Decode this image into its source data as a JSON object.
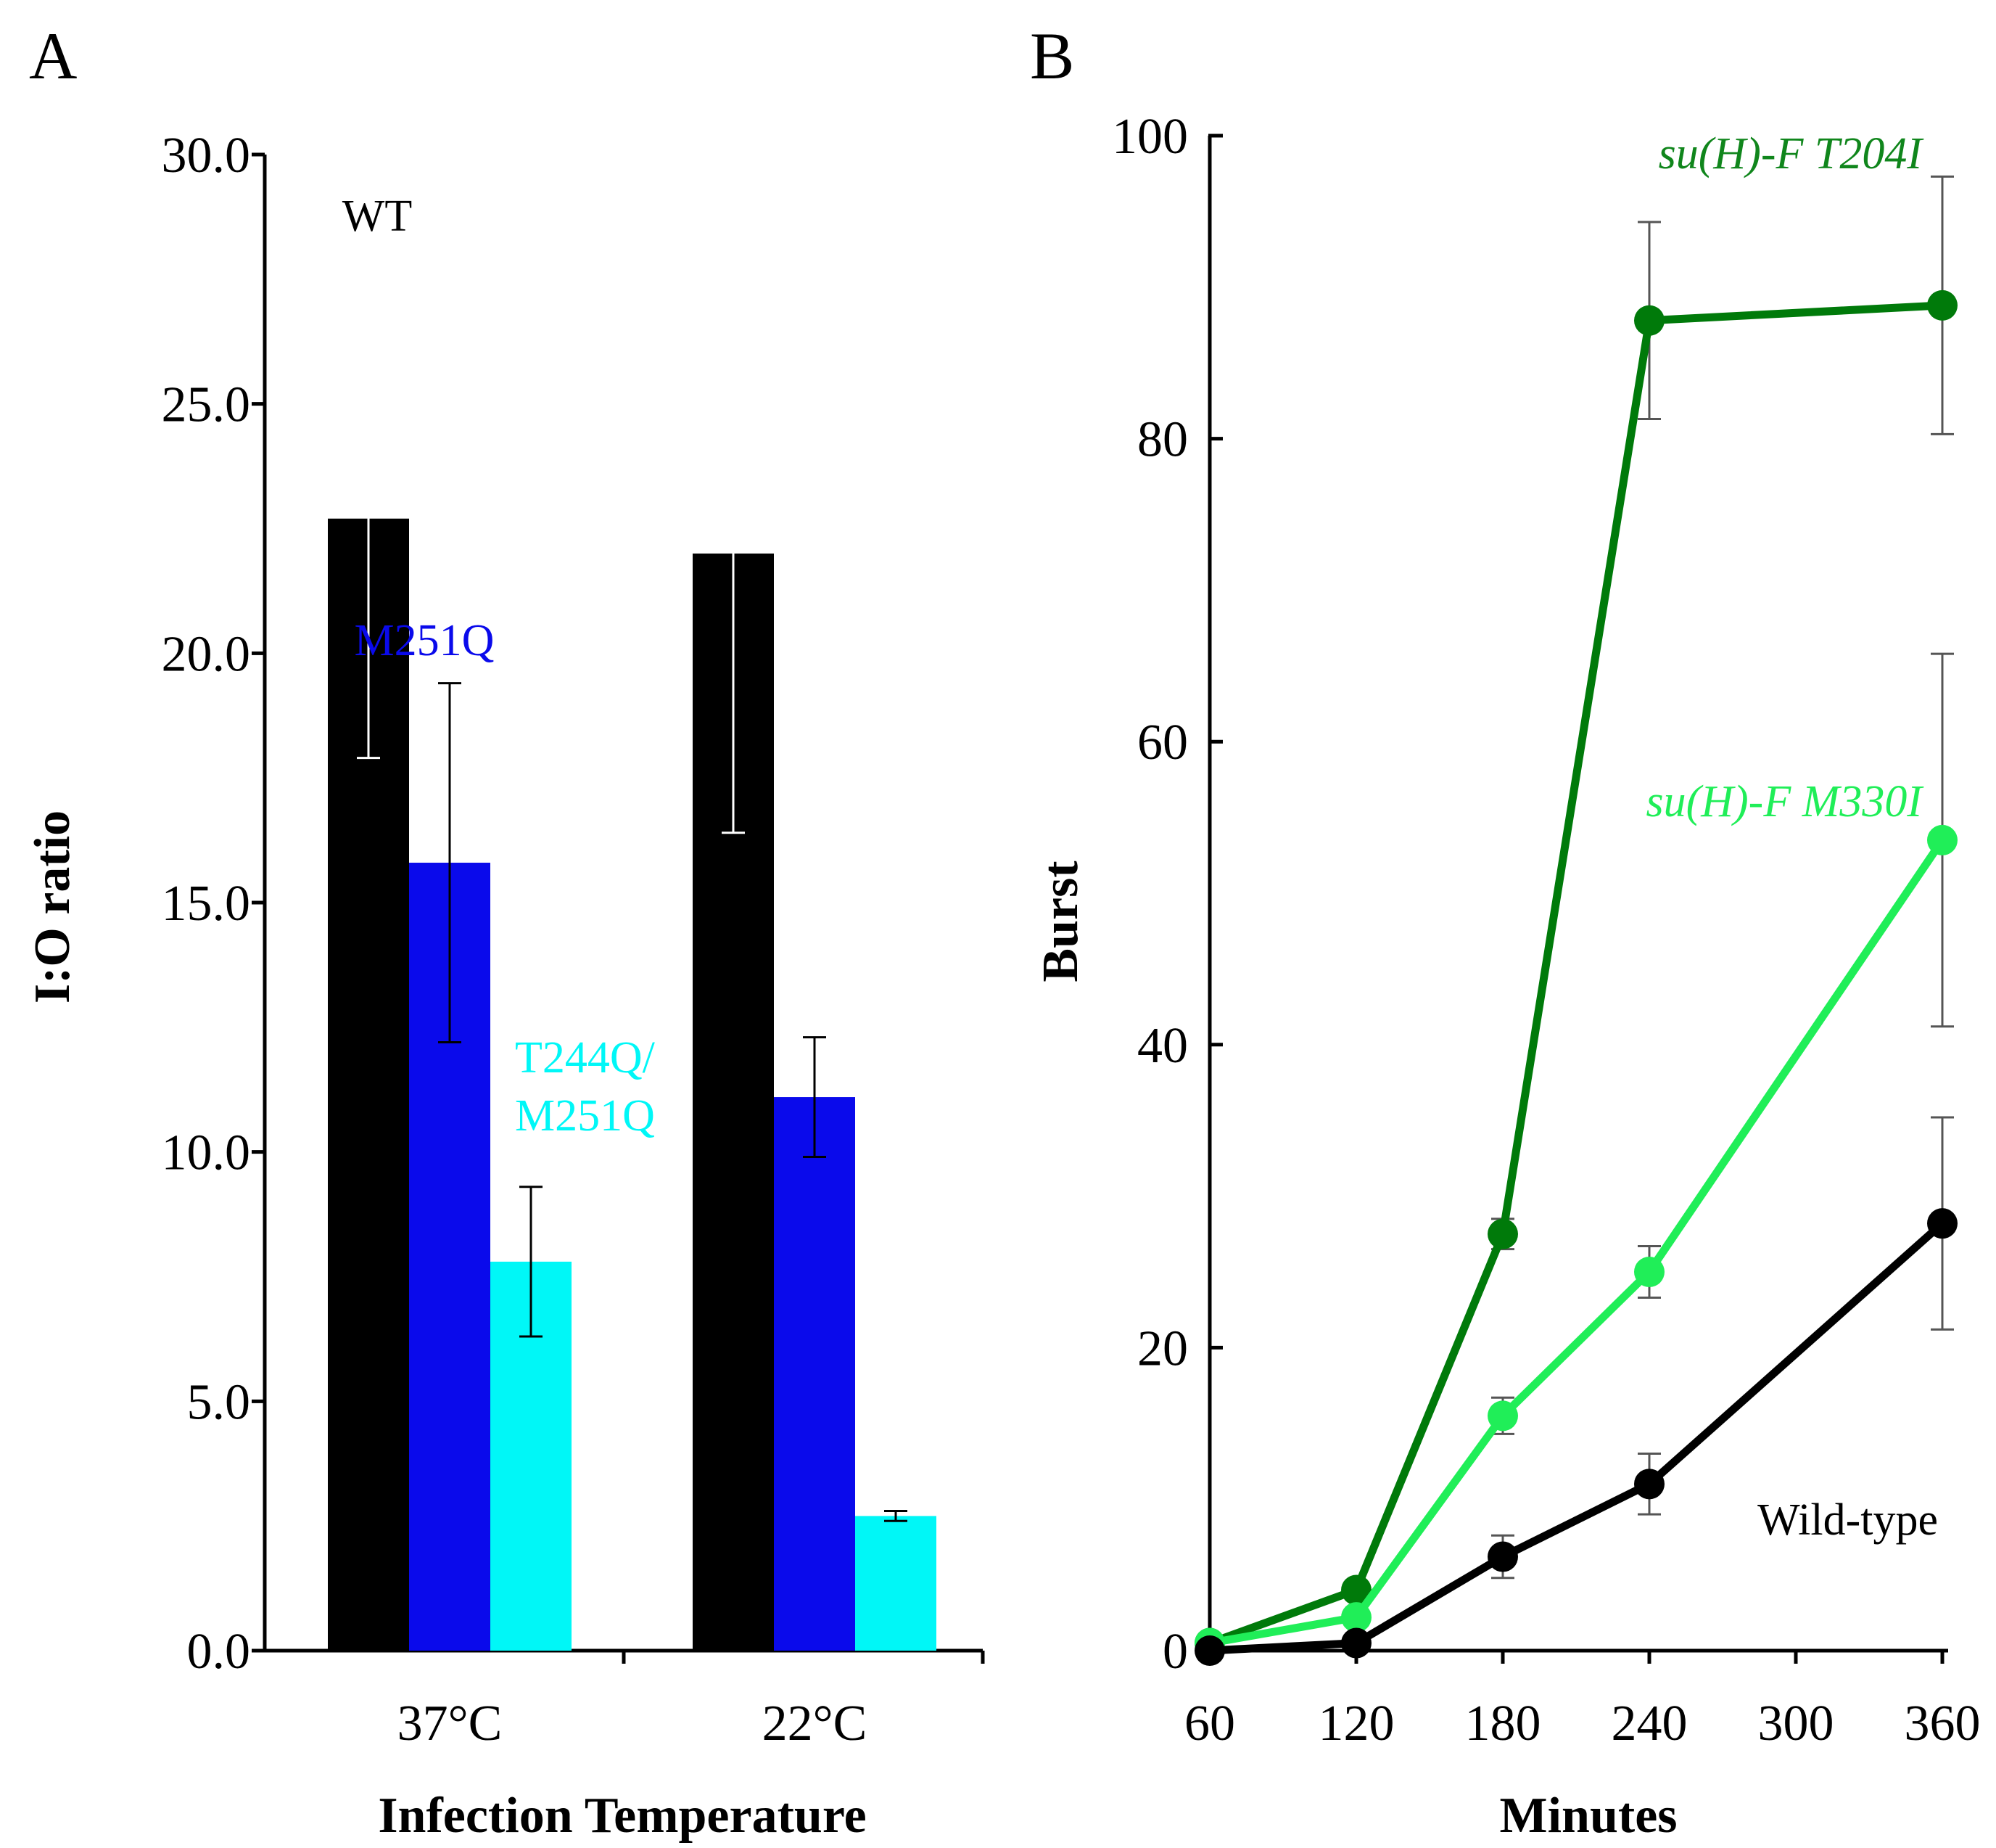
{
  "panel_labels": [
    "A",
    "B"
  ],
  "chart_data": [
    {
      "panel": "A",
      "type": "bar",
      "xlabel": "Infection Temperature",
      "ylabel": "I:O ratio",
      "ylim": [
        0,
        30
      ],
      "yticks": [
        "0.0",
        "5.0",
        "10.0",
        "15.0",
        "20.0",
        "25.0",
        "30.0"
      ],
      "categories": [
        "37°C",
        "22°C"
      ],
      "series": [
        {
          "name": "WT",
          "label_lines": [
            "WT"
          ],
          "color": "#000000",
          "errorbar_color": "#ffffff",
          "values": [
            22.7,
            22.0
          ],
          "errors": [
            4.8,
            5.6
          ]
        },
        {
          "name": "M251Q",
          "label_lines": [
            "M251Q"
          ],
          "color": "#0a0aeb",
          "errorbar_color": "#000000",
          "values": [
            15.8,
            11.1
          ],
          "errors": [
            3.6,
            1.2
          ]
        },
        {
          "name": "T244Q/M251Q",
          "label_lines": [
            "T244Q/",
            "M251Q"
          ],
          "color": "#00f7f7",
          "errorbar_color": "#000000",
          "values": [
            7.8,
            2.7
          ],
          "errors": [
            1.5,
            0.1
          ]
        }
      ]
    },
    {
      "panel": "B",
      "type": "line",
      "xlabel": "Minutes",
      "ylabel": "Burst",
      "xlim": [
        60,
        360
      ],
      "ylim": [
        0,
        100
      ],
      "xticks": [
        "60",
        "120",
        "180",
        "240",
        "300",
        "360"
      ],
      "yticks": [
        "0",
        "20",
        "40",
        "60",
        "80",
        "100"
      ],
      "series": [
        {
          "name": "su(H)-F T204I",
          "color": "#007a0a",
          "label_color": "#10861c",
          "italic": true,
          "x": [
            60,
            120,
            180,
            240,
            360
          ],
          "y": [
            0.5,
            4.0,
            27.5,
            87.8,
            88.8
          ],
          "errors": [
            0,
            0,
            1.0,
            6.5,
            8.5
          ]
        },
        {
          "name": "su(H)-F M330I",
          "color": "#20ee58",
          "label_color": "#20ee58",
          "italic": true,
          "x": [
            60,
            120,
            180,
            240,
            360
          ],
          "y": [
            0.5,
            2.2,
            15.5,
            25.0,
            53.5
          ],
          "errors": [
            0,
            0.4,
            1.2,
            1.7,
            12.3
          ]
        },
        {
          "name": "Wild-type",
          "color": "#000000",
          "label_color": "#000000",
          "italic": false,
          "x": [
            60,
            120,
            180,
            240,
            360
          ],
          "y": [
            0,
            0.5,
            6.2,
            11.0,
            28.2
          ],
          "errors": [
            0,
            0,
            1.4,
            2.0,
            7.0
          ]
        }
      ]
    }
  ]
}
